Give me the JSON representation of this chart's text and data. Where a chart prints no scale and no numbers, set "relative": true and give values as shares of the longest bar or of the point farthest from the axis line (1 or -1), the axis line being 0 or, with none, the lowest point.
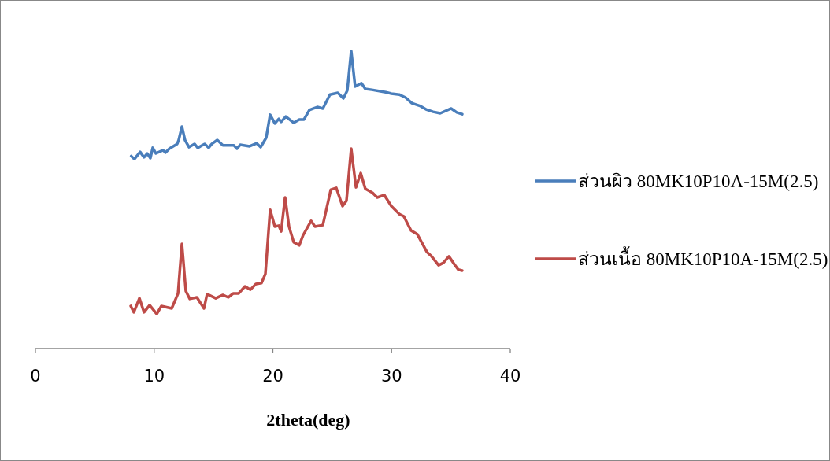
{
  "chart_data": {
    "type": "line",
    "relative": true,
    "xlabel": "2theta(deg)",
    "xlim": [
      0,
      40
    ],
    "xticks": [
      0,
      10,
      20,
      30,
      40
    ],
    "legend": "right",
    "series": [
      {
        "name": "ส่วนผิว 80MK10P10A-15M(2.5)",
        "color": "#4a7ebb",
        "x": [
          8.07,
          8.34,
          8.82,
          9.15,
          9.42,
          9.68,
          9.88,
          10.15,
          10.75,
          10.95,
          11.28,
          11.94,
          12.07,
          12.34,
          12.6,
          12.94,
          13.4,
          13.67,
          14.26,
          14.59,
          14.86,
          15.32,
          15.79,
          16.72,
          16.98,
          17.25,
          18.04,
          18.64,
          18.97,
          19.44,
          19.77,
          20.17,
          20.5,
          20.7,
          21.09,
          21.76,
          22.22,
          22.62,
          23.08,
          23.42,
          23.75,
          24.21,
          24.81,
          25.47,
          25.94,
          26.27,
          26.6,
          26.93,
          27.46,
          27.79,
          28.33,
          29.52,
          29.98,
          30.65,
          31.18,
          31.71,
          32.44,
          32.9,
          33.5,
          34.1,
          35.02,
          35.49,
          35.95
        ],
        "values": [
          0.647,
          0.637,
          0.661,
          0.643,
          0.656,
          0.64,
          0.675,
          0.656,
          0.667,
          0.659,
          0.672,
          0.688,
          0.701,
          0.746,
          0.701,
          0.677,
          0.688,
          0.675,
          0.688,
          0.675,
          0.688,
          0.701,
          0.683,
          0.683,
          0.672,
          0.685,
          0.68,
          0.69,
          0.677,
          0.709,
          0.786,
          0.757,
          0.772,
          0.762,
          0.78,
          0.759,
          0.77,
          0.77,
          0.802,
          0.807,
          0.812,
          0.807,
          0.854,
          0.86,
          0.841,
          0.868,
          1.0,
          0.881,
          0.892,
          0.873,
          0.87,
          0.862,
          0.857,
          0.854,
          0.844,
          0.825,
          0.815,
          0.804,
          0.796,
          0.791,
          0.807,
          0.794,
          0.788
        ]
      },
      {
        "name": "ส่วนเนื้อ 80MK10P10A-15M(2.5)",
        "color": "#be4b48",
        "x": [
          8.03,
          8.29,
          8.76,
          9.15,
          9.62,
          10.22,
          10.61,
          11.48,
          12.01,
          12.34,
          12.67,
          13.0,
          13.6,
          14.2,
          14.46,
          15.19,
          15.79,
          16.25,
          16.65,
          17.11,
          17.65,
          18.11,
          18.57,
          19.04,
          19.37,
          19.77,
          20.17,
          20.5,
          20.7,
          21.03,
          21.36,
          21.76,
          22.22,
          22.55,
          23.22,
          23.55,
          24.21,
          24.88,
          25.34,
          25.87,
          26.2,
          26.6,
          27.0,
          27.4,
          27.79,
          28.39,
          28.79,
          29.39,
          29.98,
          30.65,
          31.04,
          31.64,
          32.17,
          32.97,
          33.37,
          33.96,
          34.36,
          34.83,
          35.29,
          35.62,
          35.95
        ],
        "values": [
          0.143,
          0.122,
          0.169,
          0.122,
          0.146,
          0.116,
          0.143,
          0.135,
          0.185,
          0.352,
          0.193,
          0.167,
          0.172,
          0.135,
          0.183,
          0.169,
          0.18,
          0.172,
          0.185,
          0.185,
          0.209,
          0.198,
          0.217,
          0.22,
          0.251,
          0.466,
          0.41,
          0.413,
          0.394,
          0.508,
          0.41,
          0.357,
          0.347,
          0.381,
          0.429,
          0.41,
          0.415,
          0.534,
          0.54,
          0.479,
          0.497,
          0.672,
          0.542,
          0.59,
          0.537,
          0.524,
          0.508,
          0.516,
          0.479,
          0.452,
          0.444,
          0.397,
          0.384,
          0.325,
          0.31,
          0.28,
          0.288,
          0.31,
          0.283,
          0.265,
          0.262
        ]
      }
    ]
  }
}
